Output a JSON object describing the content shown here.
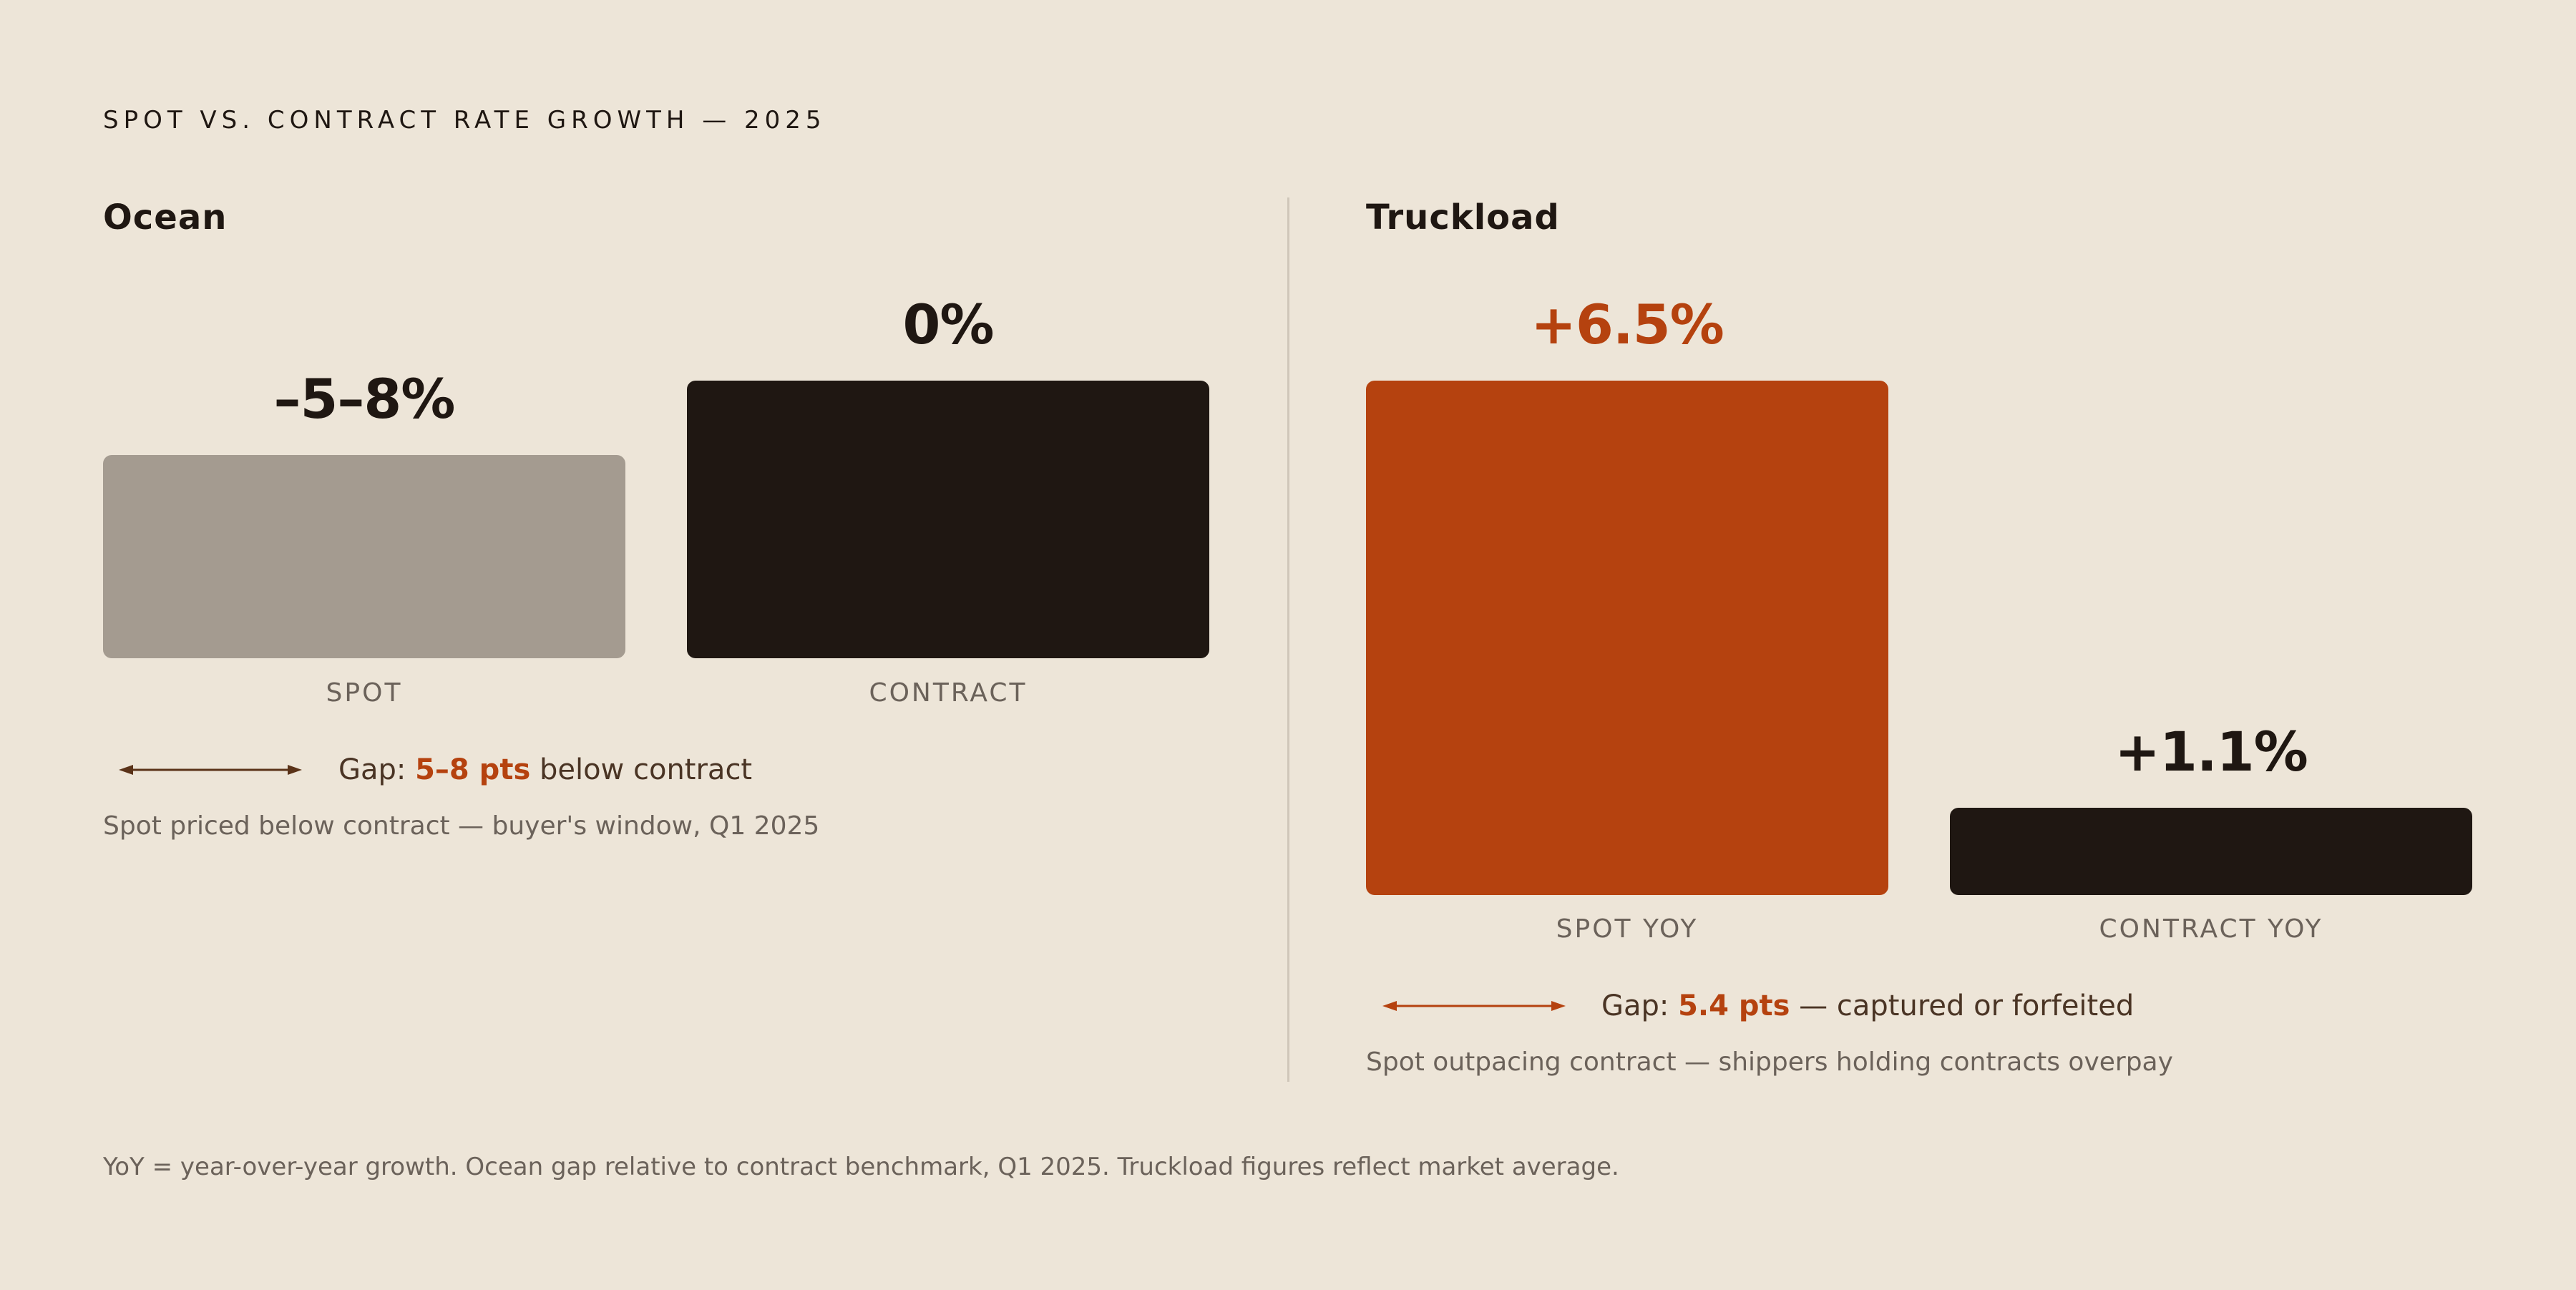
{
  "title": "SPOT VS. CONTRACT RATE GROWTH — 2025",
  "colors": {
    "background": "#ede5d8",
    "accent": "#b5420f",
    "dark": "#1f1712",
    "muted_bar": "#a49b90"
  },
  "chart_data": [
    {
      "type": "bar",
      "title": "Ocean",
      "categories": [
        "SPOT",
        "CONTRACT"
      ],
      "values": [
        -6.5,
        0
      ],
      "value_labels": [
        "–5–8%",
        "0%"
      ],
      "bar_colors": [
        "#a49b90",
        "#1f1712"
      ],
      "label_colors": [
        "#1f1712",
        "#1f1712"
      ],
      "gap": {
        "prefix": "Gap:",
        "highlight": "5–8 pts",
        "suffix": "below contract",
        "arrow_color": "#5a3218"
      },
      "caption": "Spot priced below contract — buyer's window, Q1 2025"
    },
    {
      "type": "bar",
      "title": "Truckload",
      "categories": [
        "SPOT YOY",
        "CONTRACT YOY"
      ],
      "values": [
        6.5,
        1.1
      ],
      "value_labels": [
        "+6.5%",
        "+1.1%"
      ],
      "bar_colors": [
        "#b5420f",
        "#1f1712"
      ],
      "label_colors": [
        "#b5420f",
        "#1f1712"
      ],
      "gap": {
        "prefix": "Gap:",
        "highlight": "5.4 pts",
        "suffix": "— captured or forfeited",
        "arrow_color": "#b5420f"
      },
      "caption": "Spot outpacing contract — shippers holding contracts overpay"
    }
  ],
  "footnote": "YoY = year-over-year growth. Ocean gap relative to contract benchmark, Q1 2025. Truckload figures reflect market average."
}
